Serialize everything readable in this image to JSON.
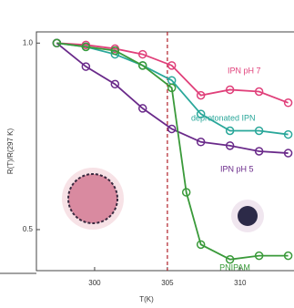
{
  "chart_data": {
    "type": "line",
    "x_label": "T(K)",
    "y_label": "R(T)/R(297 K)",
    "xlim": [
      296,
      313.7
    ],
    "ylim": [
      0.39,
      1.03
    ],
    "xticks": [
      300,
      305,
      310
    ],
    "yticks": [
      {
        "value": 1.0,
        "label": "1.0"
      },
      {
        "value": 0.5,
        "label": "0.5"
      }
    ],
    "reference_line": {
      "x": 305,
      "color": "#b0202a"
    },
    "series": [
      {
        "name": "IPN pH 7",
        "color": "#e0407a",
        "x": [
          297.4,
          299.4,
          301.4,
          303.3,
          305.3,
          307.3,
          309.3,
          311.3,
          313.3
        ],
        "values": [
          1.0,
          0.995,
          0.985,
          0.97,
          0.94,
          0.86,
          0.875,
          0.87,
          0.84
        ]
      },
      {
        "name": "deprotonated IPN",
        "color": "#2aa79a",
        "x": [
          297.4,
          299.4,
          301.4,
          303.3,
          305.3,
          307.3,
          309.3,
          311.3,
          313.3
        ],
        "values": [
          1.0,
          0.99,
          0.97,
          0.94,
          0.9,
          0.81,
          0.765,
          0.765,
          0.755
        ]
      },
      {
        "name": "IPN pH 5",
        "color": "#6a2a8a",
        "x": [
          297.4,
          299.4,
          301.4,
          303.3,
          305.3,
          307.3,
          309.3,
          311.3,
          313.3
        ],
        "values": [
          1.0,
          0.937,
          0.89,
          0.825,
          0.77,
          0.735,
          0.725,
          0.71,
          0.705
        ]
      },
      {
        "name": "PNIPAM",
        "color": "#3a9a3a",
        "x": [
          297.4,
          299.4,
          301.4,
          303.3,
          305.3,
          306.3,
          307.3,
          309.3,
          311.3,
          313.3
        ],
        "values": [
          1.0,
          0.99,
          0.98,
          0.94,
          0.88,
          0.6,
          0.46,
          0.42,
          0.43,
          0.43
        ]
      }
    ]
  }
}
